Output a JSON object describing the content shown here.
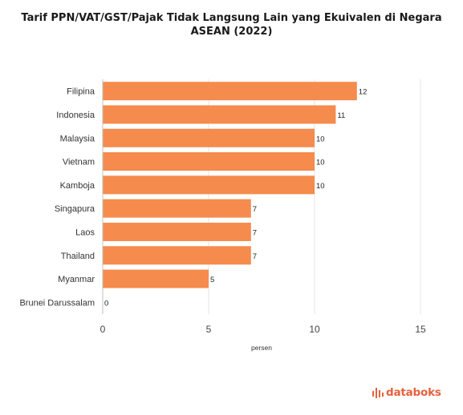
{
  "title_line1": "Tarif PPN/VAT/GST/Pajak Tidak Langsung Lain yang Ekuivalen di Negara",
  "title_line2": "ASEAN (2022)",
  "brand": "databoks",
  "colors": {
    "bar": "#f58b4c",
    "grid": "#e6e6e6",
    "brand": "#e8603c"
  },
  "chart_data": {
    "type": "bar",
    "orientation": "horizontal",
    "categories": [
      "Filipina",
      "Indonesia",
      "Malaysia",
      "Vietnam",
      "Kamboja",
      "Singapura",
      "Laos",
      "Thailand",
      "Myanmar",
      "Brunei Darussalam"
    ],
    "values": [
      12,
      11,
      10,
      10,
      10,
      7,
      7,
      7,
      5,
      0
    ],
    "xlabel": "persen",
    "ylabel": "",
    "xlim": [
      0,
      15
    ],
    "xticks": [
      0,
      5,
      10,
      15
    ],
    "grid": true,
    "data_labels": true
  }
}
